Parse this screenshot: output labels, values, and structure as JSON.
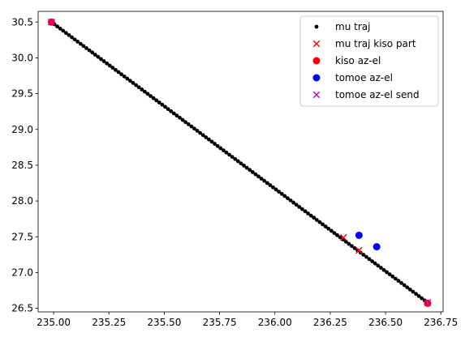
{
  "chart_data": {
    "type": "scatter",
    "title": "",
    "xlabel": "",
    "ylabel": "",
    "xlim": [
      234.93,
      236.76
    ],
    "ylim": [
      26.45,
      30.65
    ],
    "xticks": [
      235.0,
      235.25,
      235.5,
      235.75,
      236.0,
      236.25,
      236.5,
      236.75
    ],
    "xtick_labels": [
      "235.00",
      "235.25",
      "235.50",
      "235.75",
      "236.00",
      "236.25",
      "236.50",
      "236.75"
    ],
    "yticks": [
      26.5,
      27.0,
      27.5,
      28.0,
      28.5,
      29.0,
      29.5,
      30.0,
      30.5
    ],
    "ytick_labels": [
      "26.5",
      "27.0",
      "27.5",
      "28.0",
      "28.5",
      "29.0",
      "29.5",
      "30.0",
      "30.5"
    ],
    "grid": false,
    "legend_position": "top-right",
    "series": [
      {
        "name": "mu traj",
        "marker": "dot",
        "color": "#000000",
        "line": {
          "x_start": 234.99,
          "y_start": 30.5,
          "x_end": 236.69,
          "y_end": 26.58,
          "count": 130
        }
      },
      {
        "name": "mu traj kiso part",
        "marker": "x",
        "color": "#ff0000",
        "points": [
          [
            234.99,
            30.5
          ],
          [
            236.31,
            27.49
          ],
          [
            236.38,
            27.31
          ],
          [
            236.69,
            26.58
          ]
        ]
      },
      {
        "name": "kiso az-el",
        "marker": "circle",
        "color": "#ff0000",
        "points": [
          [
            234.99,
            30.5
          ],
          [
            236.69,
            26.57
          ]
        ]
      },
      {
        "name": "tomoe az-el",
        "marker": "circle",
        "color": "#0000ff",
        "points": [
          [
            236.38,
            27.52
          ],
          [
            236.46,
            27.36
          ]
        ]
      },
      {
        "name": "tomoe az-el send",
        "marker": "x",
        "color": "#bf00bf",
        "points": [
          [
            234.99,
            30.5
          ],
          [
            236.69,
            26.58
          ]
        ]
      }
    ]
  }
}
